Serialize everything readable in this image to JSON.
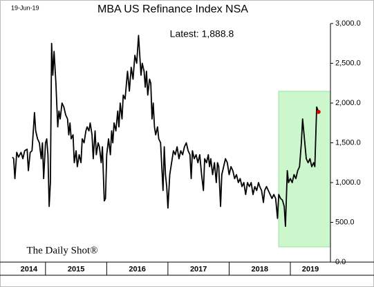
{
  "chart_data": {
    "type": "line",
    "date": "19-Jun-19",
    "title": "MBA US Refinance Index NSA",
    "annotation": "Latest:  1,888.8",
    "source": "The Daily Shot®",
    "color": "#000000",
    "last_point_color": "#dd0000",
    "xlim": [
      2014.46,
      2019.655
    ],
    "xticks": [
      2014,
      2015,
      2016,
      2017,
      2018,
      2019
    ],
    "ylim": [
      0,
      3000
    ],
    "yticks": [
      {
        "value": 0,
        "label": "0.0"
      },
      {
        "value": 500,
        "label": "500.0"
      },
      {
        "value": 1000,
        "label": "1,000.0"
      },
      {
        "value": 1500,
        "label": "1,500.0"
      },
      {
        "value": 2000,
        "label": "2,000.0"
      },
      {
        "value": 2500,
        "label": "2,500.0"
      },
      {
        "value": 3000,
        "label": "3,000.0"
      }
    ],
    "x": [
      2014.46,
      2014.48,
      2014.5,
      2014.53,
      2014.56,
      2014.6,
      2014.63,
      2014.66,
      2014.7,
      2014.72,
      2014.75,
      2014.78,
      2014.82,
      2014.84,
      2014.87,
      2014.9,
      2014.93,
      2014.95,
      2014.97,
      2015.0,
      2015.02,
      2015.04,
      2015.06,
      2015.08,
      2015.1,
      2015.12,
      2015.14,
      2015.17,
      2015.2,
      2015.22,
      2015.24,
      2015.27,
      2015.3,
      2015.33,
      2015.36,
      2015.38,
      2015.4,
      2015.42,
      2015.45,
      2015.47,
      2015.5,
      2015.52,
      2015.55,
      2015.58,
      2015.6,
      2015.63,
      2015.66,
      2015.68,
      2015.71,
      2015.73,
      2015.76,
      2015.78,
      2015.81,
      2015.83,
      2015.86,
      2015.88,
      2015.91,
      2015.93,
      2015.96,
      2015.98,
      2016.0,
      2016.03,
      2016.06,
      2016.08,
      2016.1,
      2016.12,
      2016.15,
      2016.18,
      2016.2,
      2016.22,
      2016.25,
      2016.27,
      2016.3,
      2016.34,
      2016.37,
      2016.4,
      2016.43,
      2016.46,
      2016.49,
      2016.52,
      2016.54,
      2016.56,
      2016.58,
      2016.61,
      2016.63,
      2016.65,
      2016.67,
      2016.7,
      2016.72,
      2016.74,
      2016.76,
      2016.78,
      2016.8,
      2016.83,
      2016.85,
      2016.88,
      2016.9,
      2016.92,
      2016.94,
      2016.96,
      2016.98,
      2017.0,
      2017.03,
      2017.06,
      2017.09,
      2017.12,
      2017.15,
      2017.18,
      2017.21,
      2017.24,
      2017.27,
      2017.3,
      2017.33,
      2017.36,
      2017.38,
      2017.4,
      2017.43,
      2017.46,
      2017.49,
      2017.52,
      2017.55,
      2017.58,
      2017.6,
      2017.63,
      2017.66,
      2017.68,
      2017.7,
      2017.73,
      2017.76,
      2017.79,
      2017.81,
      2017.83,
      2017.86,
      2017.88,
      2017.91,
      2017.94,
      2017.97,
      2018.0,
      2018.03,
      2018.06,
      2018.09,
      2018.12,
      2018.15,
      2018.18,
      2018.21,
      2018.24,
      2018.27,
      2018.3,
      2018.33,
      2018.36,
      2018.39,
      2018.42,
      2018.45,
      2018.48,
      2018.5,
      2018.53,
      2018.56,
      2018.58,
      2018.61,
      2018.64,
      2018.67,
      2018.7,
      2018.73,
      2018.76,
      2018.79,
      2018.81,
      2018.84,
      2018.87,
      2018.9,
      2018.92,
      2018.95,
      2018.97,
      2019.0,
      2019.03,
      2019.06,
      2019.09,
      2019.12,
      2019.15,
      2019.18,
      2019.2,
      2019.23,
      2019.26,
      2019.29,
      2019.32,
      2019.35,
      2019.38,
      2019.4,
      2019.43,
      2019.46
    ],
    "values": [
      1320,
      1300,
      1050,
      1380,
      1320,
      1380,
      1300,
      1400,
      1420,
      1150,
      1380,
      1400,
      1880,
      1650,
      1550,
      1500,
      1300,
      1500,
      1050,
      1500,
      1550,
      1350,
      700,
      1000,
      2750,
      2350,
      2650,
      2250,
      1700,
      1900,
      1800,
      2000,
      1950,
      1850,
      1800,
      1600,
      1750,
      1550,
      1600,
      1250,
      1400,
      1200,
      1350,
      1250,
      1550,
      1500,
      1650,
      1700,
      1650,
      1750,
      1600,
      1300,
      1650,
      1350,
      1500,
      1450,
      1250,
      1450,
      770,
      800,
      1350,
      1550,
      1350,
      1650,
      1500,
      1750,
      1650,
      1900,
      1700,
      2000,
      1800,
      2100,
      2050,
      2400,
      2150,
      2450,
      2300,
      2600,
      2500,
      2850,
      2600,
      2350,
      2500,
      2400,
      2200,
      2400,
      2100,
      2300,
      2250,
      1800,
      2000,
      1700,
      1600,
      1700,
      1550,
      1500,
      1200,
      900,
      1450,
      1100,
      950,
      680,
      1100,
      1250,
      1400,
      1350,
      1450,
      1300,
      1400,
      1350,
      1450,
      1500,
      1400,
      1350,
      1050,
      1400,
      1300,
      1350,
      1250,
      1350,
      1100,
      900,
      1300,
      1250,
      1350,
      1200,
      1300,
      1100,
      1250,
      1000,
      1250,
      1200,
      700,
      1100,
      1200,
      1300,
      1250,
      1100,
      1200,
      1150,
      1050,
      1100,
      1000,
      1050,
      950,
      1000,
      850,
      1000,
      950,
      1000,
      850,
      950,
      900,
      1000,
      950,
      900,
      750,
      900,
      950,
      900,
      850,
      800,
      850,
      800,
      550,
      850,
      800,
      780,
      700,
      450,
      1150,
      1000,
      1050,
      1000,
      1100,
      1050,
      1150,
      1200,
      1500,
      1800,
      1550,
      1300,
      1250,
      1300,
      1200,
      1250,
      1200,
      1950,
      1888.8
    ]
  }
}
